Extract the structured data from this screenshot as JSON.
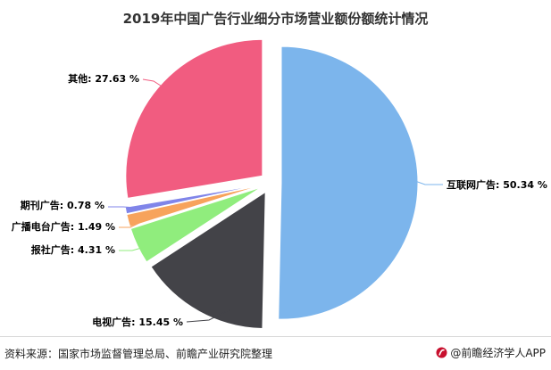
{
  "chart_data": {
    "type": "pie",
    "title": "2019年中国广告行业细分市场营业额份额统计情况",
    "start_angle_deg": 0,
    "direction": "clockwise",
    "exploded": true,
    "slices": [
      {
        "label": "互联网广告",
        "value": 50.34,
        "display": "互联网广告: 50.34 %",
        "color": "#7cb5ec"
      },
      {
        "label": "电视广告",
        "value": 15.45,
        "display": "电视广告: 15.45 %",
        "color": "#434348"
      },
      {
        "label": "报社广告",
        "value": 4.31,
        "display": "报社广告: 4.31 %",
        "color": "#90ed7d"
      },
      {
        "label": "广播电台广告",
        "value": 1.49,
        "display": "广播电台广告: 1.49 %",
        "color": "#f7a35c"
      },
      {
        "label": "期刊广告",
        "value": 0.78,
        "display": "期刊广告: 0.78 %",
        "color": "#8085e9"
      },
      {
        "label": "其他",
        "value": 27.63,
        "display": "其他: 27.63 %",
        "color": "#f15c80"
      }
    ]
  },
  "footer": {
    "source": "资料来源：国家市场监督管理总局、前瞻产业研究院整理",
    "brand": "@前瞻经济学人APP"
  }
}
